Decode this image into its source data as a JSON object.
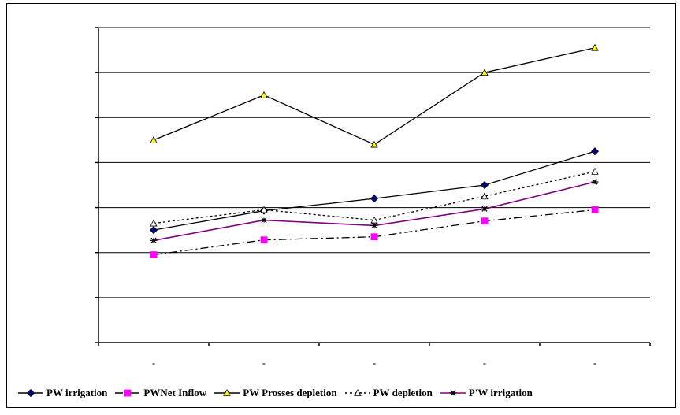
{
  "chart_data": {
    "type": "line",
    "title": "",
    "xlabel": "",
    "ylabel": "",
    "categories": [
      "-",
      "-",
      "-",
      "-",
      "-"
    ],
    "ylim": [
      0,
      7
    ],
    "y_gridlines": [
      1,
      2,
      3,
      4,
      5,
      6,
      7
    ],
    "grid": true,
    "legend_position": "bottom",
    "series": [
      {
        "name": "PW irrigation",
        "values": [
          2.5,
          2.93,
          3.2,
          3.5,
          4.25
        ],
        "color": "#000080",
        "line_color": "#000000",
        "dash": "solid",
        "marker": "diamond"
      },
      {
        "name": "PWNet Inflow",
        "values": [
          1.95,
          2.28,
          2.35,
          2.7,
          2.95
        ],
        "color": "#ff00ff",
        "line_color": "#000000",
        "dash": "dashdot",
        "marker": "square"
      },
      {
        "name": "PW Prosses depletion",
        "values": [
          4.5,
          5.5,
          4.4,
          6.0,
          6.55
        ],
        "color": "#ffff00",
        "line_color": "#000000",
        "dash": "solid",
        "marker": "triangle"
      },
      {
        "name": "PW depletion",
        "values": [
          2.65,
          2.95,
          2.72,
          3.25,
          3.8
        ],
        "color": "#ffffff",
        "line_color": "#000000",
        "dash": "dotted",
        "marker": "triangle"
      },
      {
        "name": "P'W irrigation",
        "values": [
          2.27,
          2.72,
          2.6,
          2.97,
          3.57
        ],
        "color": "#000000",
        "line_color": "#800080",
        "dash": "solid",
        "marker": "asterisk"
      }
    ]
  }
}
